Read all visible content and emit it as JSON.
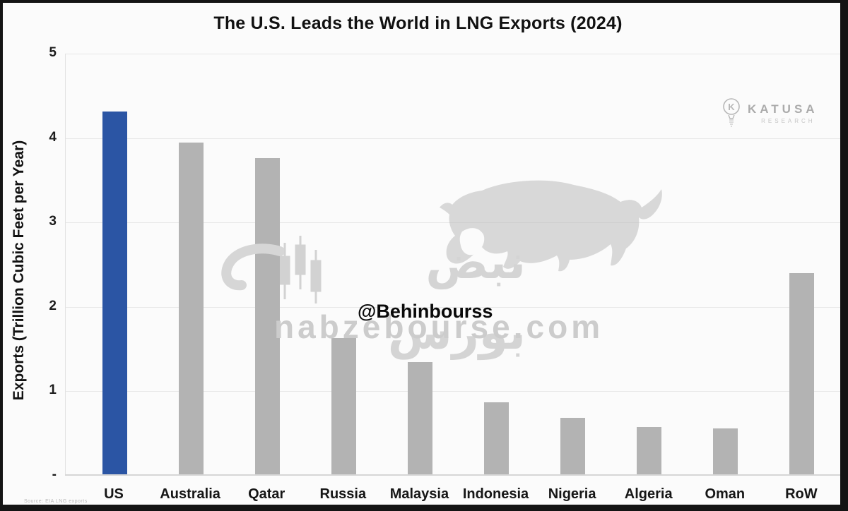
{
  "title": "The U.S. Leads the World in LNG Exports (2024)",
  "y_axis": {
    "label": "Exports (Trillion Cubic Feet per Year)",
    "tick_labels": [
      "5",
      "4",
      "3",
      "2",
      "1",
      "-"
    ],
    "tick_values": [
      5,
      4,
      3,
      2,
      1,
      0
    ]
  },
  "chart_data": {
    "type": "bar",
    "title": "The U.S. Leads the World in LNG Exports (2024)",
    "categories": [
      "US",
      "Australia",
      "Qatar",
      "Russia",
      "Malaysia",
      "Indonesia",
      "Nigeria",
      "Algeria",
      "Oman",
      "RoW"
    ],
    "values": [
      4.3,
      3.93,
      3.75,
      1.61,
      1.33,
      0.85,
      0.67,
      0.56,
      0.54,
      2.38
    ],
    "xlabel": "",
    "ylabel": "Exports (Trillion Cubic Feet per Year)",
    "ylim": [
      0,
      5
    ],
    "grid": true,
    "legend": false,
    "colors": {
      "highlight_index": 0,
      "highlight_color": "#2b55a4",
      "default_color": "#b3b3b3"
    }
  },
  "branding": {
    "name": "KATUSA",
    "subtitle": "RESEARCH",
    "icon": "lightbulb-k-icon",
    "color": "#ababab"
  },
  "watermark": {
    "arabic_text": "نبض بورس",
    "url_text": "nabzebourse.com",
    "handle_text": "@Behinbourss",
    "bull_icon": "bull-silhouette",
    "candles_icon": "candlestick-chart"
  },
  "source_note": "Source: EIA LNG exports"
}
